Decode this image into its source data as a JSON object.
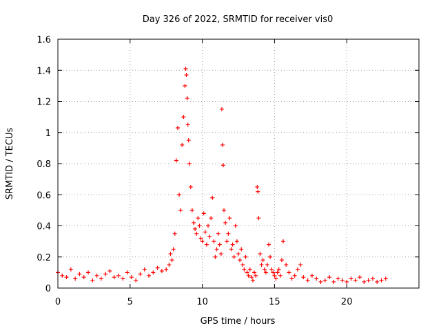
{
  "chart_data": {
    "type": "scatter",
    "title": "Day 326 of 2022, SRMTID for receiver vis0",
    "xlabel": "GPS time / hours",
    "ylabel": "SRMTID / TECUs",
    "xlim": [
      0,
      25
    ],
    "ylim": [
      0,
      1.6
    ],
    "xticks": [
      0,
      5,
      10,
      15,
      20
    ],
    "xtick_labels": [
      "0",
      "5",
      "10",
      "15",
      "20"
    ],
    "yticks": [
      0,
      0.2,
      0.4,
      0.6,
      0.8,
      1.0,
      1.2,
      1.4,
      1.6
    ],
    "ytick_labels": [
      "0",
      "0.2",
      "0.4",
      "0.6",
      "0.8",
      "1",
      "1.2",
      "1.4",
      "1.6"
    ],
    "grid": true,
    "marker": "plus",
    "color": "#ff0000",
    "series": [
      {
        "name": "vis0",
        "x": [
          0.0,
          0.3,
          0.6,
          0.9,
          1.2,
          1.5,
          1.8,
          2.1,
          2.4,
          2.7,
          3.0,
          3.3,
          3.6,
          3.9,
          4.2,
          4.5,
          4.8,
          5.1,
          5.4,
          5.7,
          6.0,
          6.3,
          6.6,
          6.9,
          7.2,
          7.5,
          7.7,
          7.8,
          7.9,
          8.0,
          8.1,
          8.2,
          8.3,
          8.4,
          8.5,
          8.6,
          8.7,
          8.8,
          8.85,
          8.9,
          8.95,
          9.0,
          9.05,
          9.1,
          9.2,
          9.3,
          9.4,
          9.5,
          9.6,
          9.7,
          9.8,
          9.9,
          10.0,
          10.1,
          10.2,
          10.3,
          10.4,
          10.5,
          10.6,
          10.7,
          10.8,
          10.9,
          11.0,
          11.1,
          11.2,
          11.3,
          11.35,
          11.4,
          11.45,
          11.5,
          11.6,
          11.7,
          11.8,
          11.9,
          12.0,
          12.1,
          12.2,
          12.3,
          12.4,
          12.5,
          12.6,
          12.7,
          12.8,
          12.9,
          13.0,
          13.1,
          13.2,
          13.3,
          13.4,
          13.5,
          13.6,
          13.7,
          13.8,
          13.85,
          13.9,
          14.0,
          14.1,
          14.2,
          14.3,
          14.4,
          14.5,
          14.6,
          14.7,
          14.8,
          14.9,
          15.0,
          15.1,
          15.2,
          15.3,
          15.4,
          15.5,
          15.6,
          15.8,
          16.0,
          16.2,
          16.4,
          16.6,
          16.8,
          17.0,
          17.3,
          17.6,
          17.9,
          18.2,
          18.5,
          18.8,
          19.1,
          19.4,
          19.7,
          20.0,
          20.3,
          20.6,
          20.9,
          21.2,
          21.5,
          21.8,
          22.1,
          22.4,
          22.7
        ],
        "y": [
          0.1,
          0.08,
          0.07,
          0.12,
          0.06,
          0.09,
          0.07,
          0.1,
          0.05,
          0.08,
          0.06,
          0.09,
          0.11,
          0.07,
          0.08,
          0.06,
          0.1,
          0.07,
          0.05,
          0.09,
          0.12,
          0.08,
          0.1,
          0.13,
          0.11,
          0.12,
          0.15,
          0.22,
          0.18,
          0.25,
          0.35,
          0.82,
          1.03,
          0.6,
          0.5,
          0.92,
          1.1,
          1.3,
          1.41,
          1.37,
          1.22,
          1.05,
          0.95,
          0.8,
          0.65,
          0.5,
          0.42,
          0.38,
          0.35,
          0.45,
          0.4,
          0.32,
          0.3,
          0.48,
          0.36,
          0.28,
          0.4,
          0.33,
          0.45,
          0.58,
          0.3,
          0.2,
          0.25,
          0.35,
          0.28,
          0.22,
          1.15,
          0.92,
          0.79,
          0.5,
          0.42,
          0.3,
          0.35,
          0.45,
          0.25,
          0.28,
          0.2,
          0.4,
          0.3,
          0.22,
          0.18,
          0.25,
          0.15,
          0.12,
          0.2,
          0.1,
          0.08,
          0.12,
          0.07,
          0.05,
          0.1,
          0.08,
          0.65,
          0.62,
          0.45,
          0.22,
          0.15,
          0.18,
          0.12,
          0.1,
          0.15,
          0.28,
          0.2,
          0.12,
          0.1,
          0.08,
          0.06,
          0.1,
          0.12,
          0.08,
          0.18,
          0.3,
          0.15,
          0.1,
          0.06,
          0.08,
          0.12,
          0.15,
          0.07,
          0.05,
          0.08,
          0.06,
          0.04,
          0.05,
          0.07,
          0.04,
          0.06,
          0.05,
          0.04,
          0.06,
          0.05,
          0.07,
          0.04,
          0.05,
          0.06,
          0.04,
          0.05,
          0.06
        ]
      }
    ]
  }
}
